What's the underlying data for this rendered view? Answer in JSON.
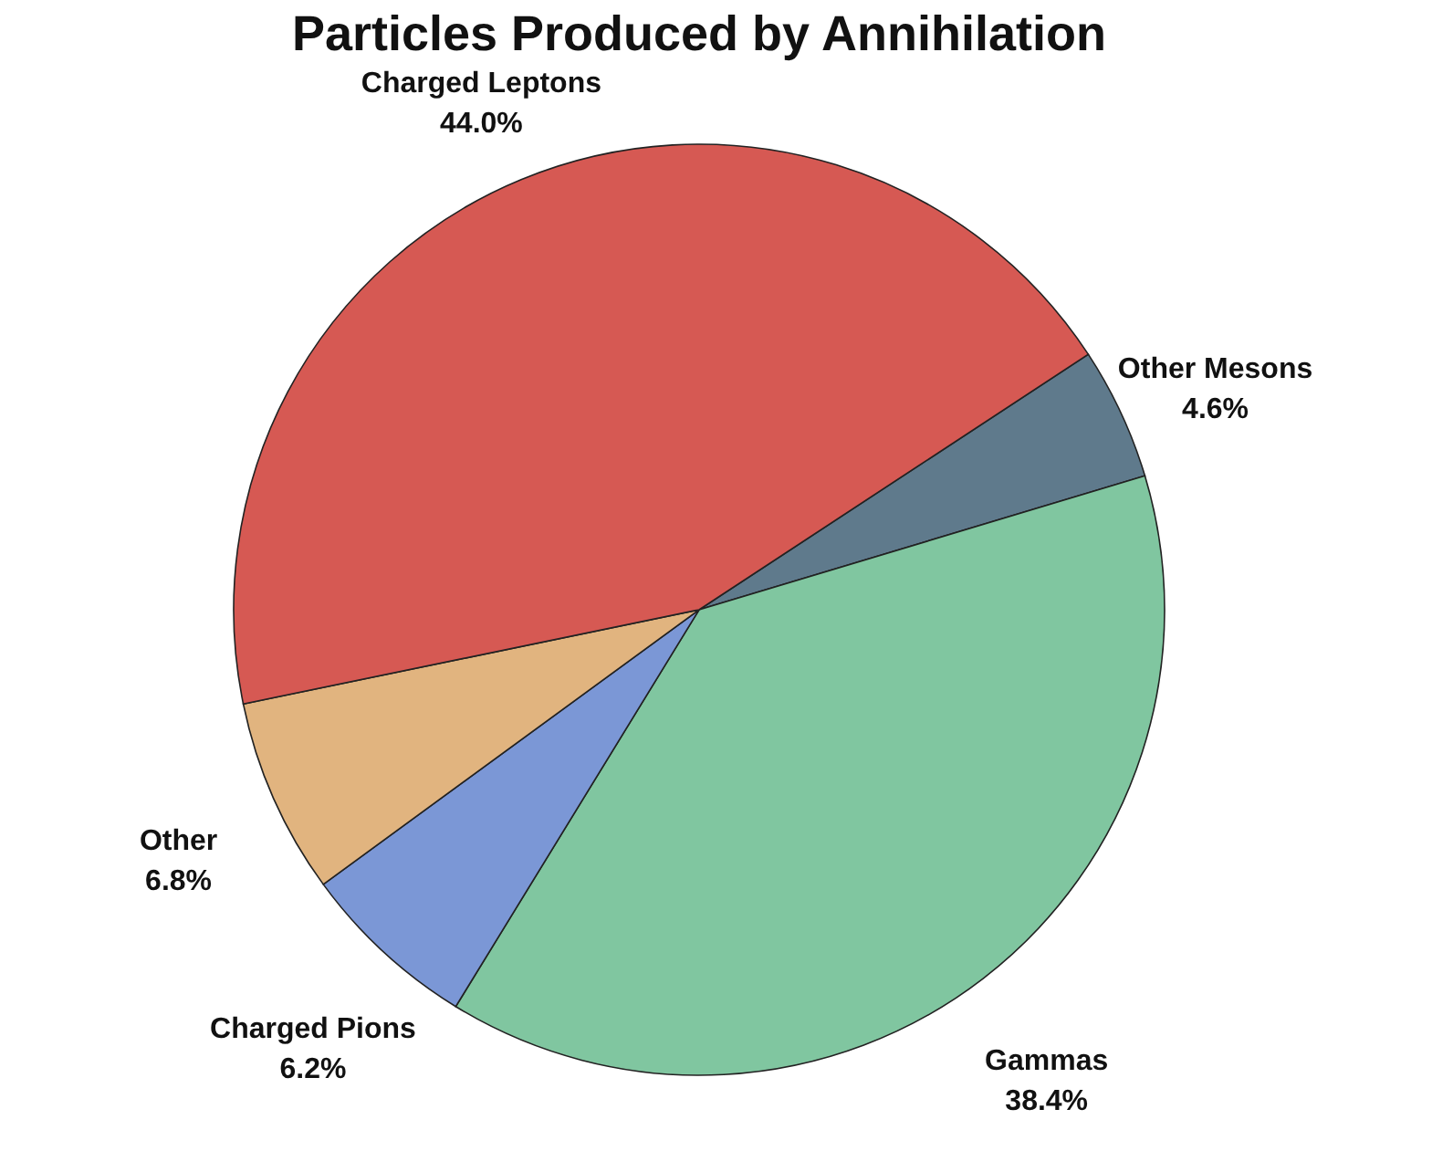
{
  "chart_data": {
    "type": "pie",
    "title": "Particles Produced by Annihilation",
    "categories": [
      "Other Mesons",
      "Gammas",
      "Charged Pions",
      "Other",
      "Charged Leptons"
    ],
    "values": [
      4.6,
      38.4,
      6.2,
      6.8,
      44.0
    ],
    "value_labels": [
      "4.6%",
      "38.4%",
      "6.2%",
      "6.8%",
      "44.0%"
    ],
    "colors": [
      "#5f7a8c",
      "#80c6a0",
      "#7b97d6",
      "#e1b47f",
      "#d65953"
    ],
    "legend": false
  }
}
